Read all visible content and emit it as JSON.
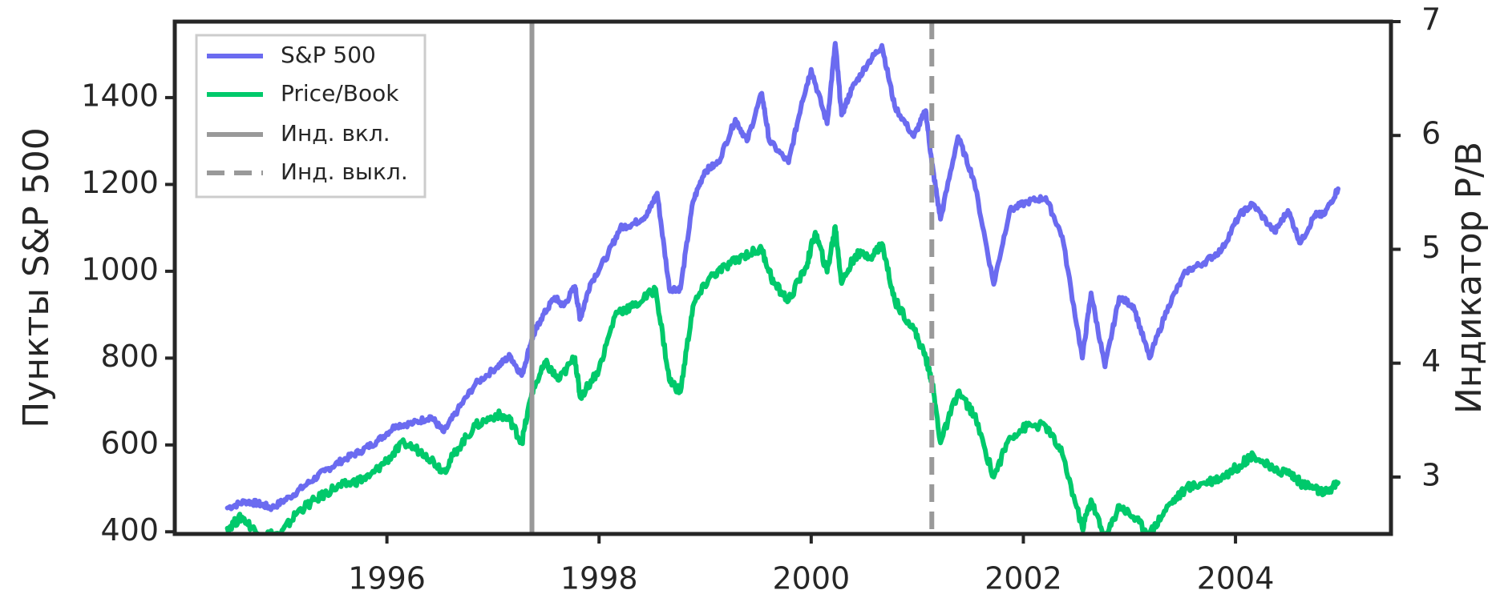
{
  "chart_data": {
    "type": "line",
    "ylabel_left": "Пункты S&P 500",
    "ylabel_right": "Индикатор P/B",
    "x_ticks": [
      "1996",
      "1998",
      "2000",
      "2002",
      "2004"
    ],
    "y_left_ticks": [
      "400",
      "600",
      "800",
      "1000",
      "1200",
      "1400"
    ],
    "y_right_ticks": [
      "3",
      "4",
      "5",
      "6",
      "7"
    ],
    "xlim": [
      "1994-01-01",
      "2005-06-20"
    ],
    "ylim_left": [
      395,
      1575
    ],
    "ylim_right": [
      2.5,
      7
    ],
    "grid": false,
    "legend_position": "top-left",
    "legend": {
      "sp500": "S&P 500",
      "pb": "Price/Book",
      "vline_on": "Инд. вкл.",
      "vline_off": "Инд. выкл."
    },
    "vlines": [
      {
        "date": "1997-05-15",
        "style": "solid",
        "label": "Инд. вкл."
      },
      {
        "date": "2001-02-20",
        "style": "dashed",
        "label": "Инд. выкл."
      }
    ],
    "series": [
      {
        "name": "S&P 500",
        "axis": "left",
        "color": "#6b6bf0",
        "points": [
          [
            "1994-07-01",
            455
          ],
          [
            "1994-09-01",
            470
          ],
          [
            "1994-10-15",
            465
          ],
          [
            "1994-12-01",
            455
          ],
          [
            "1995-02-01",
            480
          ],
          [
            "1995-04-01",
            510
          ],
          [
            "1995-06-01",
            540
          ],
          [
            "1995-08-01",
            565
          ],
          [
            "1995-10-01",
            585
          ],
          [
            "1995-12-01",
            610
          ],
          [
            "1996-02-01",
            645
          ],
          [
            "1996-04-01",
            650
          ],
          [
            "1996-06-01",
            665
          ],
          [
            "1996-07-15",
            630
          ],
          [
            "1996-09-01",
            680
          ],
          [
            "1996-11-01",
            740
          ],
          [
            "1997-01-15",
            780
          ],
          [
            "1997-03-01",
            805
          ],
          [
            "1997-04-10",
            760
          ],
          [
            "1997-05-15",
            845
          ],
          [
            "1997-06-15",
            890
          ],
          [
            "1997-08-01",
            940
          ],
          [
            "1997-09-01",
            920
          ],
          [
            "1997-10-10",
            965
          ],
          [
            "1997-10-28",
            890
          ],
          [
            "1997-12-01",
            970
          ],
          [
            "1998-02-01",
            1040
          ],
          [
            "1998-03-15",
            1100
          ],
          [
            "1998-05-01",
            1110
          ],
          [
            "1998-06-15",
            1130
          ],
          [
            "1998-07-20",
            1180
          ],
          [
            "1998-08-31",
            960
          ],
          [
            "1998-10-08",
            960
          ],
          [
            "1998-11-20",
            1160
          ],
          [
            "1998-12-30",
            1230
          ],
          [
            "1999-02-15",
            1250
          ],
          [
            "1999-04-15",
            1350
          ],
          [
            "1999-05-25",
            1300
          ],
          [
            "1999-07-15",
            1410
          ],
          [
            "1999-08-10",
            1300
          ],
          [
            "1999-10-15",
            1250
          ],
          [
            "1999-11-30",
            1390
          ],
          [
            "2000-01-01",
            1465
          ],
          [
            "2000-02-25",
            1340
          ],
          [
            "2000-03-24",
            1525
          ],
          [
            "2000-04-15",
            1360
          ],
          [
            "2000-05-20",
            1420
          ],
          [
            "2000-07-15",
            1480
          ],
          [
            "2000-09-01",
            1520
          ],
          [
            "2000-10-15",
            1380
          ],
          [
            "2000-12-20",
            1310
          ],
          [
            "2001-01-30",
            1370
          ],
          [
            "2001-02-20",
            1250
          ],
          [
            "2001-03-22",
            1120
          ],
          [
            "2001-05-21",
            1310
          ],
          [
            "2001-07-15",
            1210
          ],
          [
            "2001-09-21",
            970
          ],
          [
            "2001-11-15",
            1140
          ],
          [
            "2002-01-15",
            1160
          ],
          [
            "2002-03-19",
            1170
          ],
          [
            "2002-05-15",
            1080
          ],
          [
            "2002-07-23",
            800
          ],
          [
            "2002-08-22",
            950
          ],
          [
            "2002-10-09",
            780
          ],
          [
            "2002-11-27",
            940
          ],
          [
            "2003-01-15",
            920
          ],
          [
            "2003-03-11",
            800
          ],
          [
            "2003-05-15",
            920
          ],
          [
            "2003-07-15",
            1000
          ],
          [
            "2003-09-15",
            1020
          ],
          [
            "2003-11-15",
            1050
          ],
          [
            "2004-01-15",
            1130
          ],
          [
            "2004-03-01",
            1155
          ],
          [
            "2004-05-15",
            1090
          ],
          [
            "2004-06-30",
            1140
          ],
          [
            "2004-08-12",
            1065
          ],
          [
            "2004-10-01",
            1130
          ],
          [
            "2004-11-01",
            1130
          ],
          [
            "2004-12-20",
            1190
          ]
        ]
      },
      {
        "name": "Price/Book",
        "axis": "right",
        "color": "#00c96b",
        "points": [
          [
            "1994-07-01",
            2.55
          ],
          [
            "1994-08-20",
            2.65
          ],
          [
            "1994-10-15",
            2.5
          ],
          [
            "1995-01-01",
            2.5
          ],
          [
            "1995-03-01",
            2.7
          ],
          [
            "1995-05-01",
            2.8
          ],
          [
            "1995-07-01",
            2.9
          ],
          [
            "1995-09-01",
            2.95
          ],
          [
            "1995-11-01",
            3.0
          ],
          [
            "1996-01-01",
            3.15
          ],
          [
            "1996-03-01",
            3.3
          ],
          [
            "1996-05-15",
            3.2
          ],
          [
            "1996-07-15",
            3.05
          ],
          [
            "1996-09-01",
            3.25
          ],
          [
            "1996-11-01",
            3.45
          ],
          [
            "1997-01-15",
            3.55
          ],
          [
            "1997-03-01",
            3.5
          ],
          [
            "1997-04-10",
            3.3
          ],
          [
            "1997-05-15",
            3.75
          ],
          [
            "1997-07-01",
            4.0
          ],
          [
            "1997-08-15",
            3.85
          ],
          [
            "1997-10-10",
            4.05
          ],
          [
            "1997-10-28",
            3.7
          ],
          [
            "1998-01-01",
            3.95
          ],
          [
            "1998-03-01",
            4.45
          ],
          [
            "1998-05-01",
            4.5
          ],
          [
            "1998-07-15",
            4.65
          ],
          [
            "1998-08-31",
            3.85
          ],
          [
            "1998-10-08",
            3.75
          ],
          [
            "1998-11-20",
            4.5
          ],
          [
            "1999-01-15",
            4.75
          ],
          [
            "1999-03-15",
            4.85
          ],
          [
            "1999-05-15",
            4.95
          ],
          [
            "1999-07-15",
            5.0
          ],
          [
            "1999-08-25",
            4.7
          ],
          [
            "1999-10-15",
            4.55
          ],
          [
            "1999-12-15",
            4.85
          ],
          [
            "2000-01-15",
            5.15
          ],
          [
            "2000-02-25",
            4.8
          ],
          [
            "2000-03-24",
            5.2
          ],
          [
            "2000-04-15",
            4.7
          ],
          [
            "2000-06-01",
            4.95
          ],
          [
            "2000-08-01",
            4.95
          ],
          [
            "2000-09-01",
            5.05
          ],
          [
            "2000-10-15",
            4.55
          ],
          [
            "2000-12-20",
            4.3
          ],
          [
            "2001-01-30",
            4.05
          ],
          [
            "2001-02-20",
            3.85
          ],
          [
            "2001-03-22",
            3.3
          ],
          [
            "2001-05-21",
            3.75
          ],
          [
            "2001-07-15",
            3.55
          ],
          [
            "2001-09-21",
            3.0
          ],
          [
            "2001-11-15",
            3.35
          ],
          [
            "2002-01-15",
            3.45
          ],
          [
            "2002-03-19",
            3.45
          ],
          [
            "2002-05-15",
            3.2
          ],
          [
            "2002-07-23",
            2.55
          ],
          [
            "2002-08-22",
            2.8
          ],
          [
            "2002-10-09",
            2.45
          ],
          [
            "2002-11-27",
            2.75
          ],
          [
            "2003-01-15",
            2.65
          ],
          [
            "2003-03-11",
            2.5
          ],
          [
            "2003-05-15",
            2.75
          ],
          [
            "2003-07-15",
            2.9
          ],
          [
            "2003-09-15",
            2.95
          ],
          [
            "2003-11-15",
            3.0
          ],
          [
            "2004-01-15",
            3.1
          ],
          [
            "2004-03-01",
            3.2
          ],
          [
            "2004-05-15",
            3.05
          ],
          [
            "2004-06-30",
            3.05
          ],
          [
            "2004-08-12",
            2.95
          ],
          [
            "2004-10-01",
            2.9
          ],
          [
            "2004-11-01",
            2.85
          ],
          [
            "2004-12-20",
            2.95
          ]
        ]
      }
    ]
  }
}
